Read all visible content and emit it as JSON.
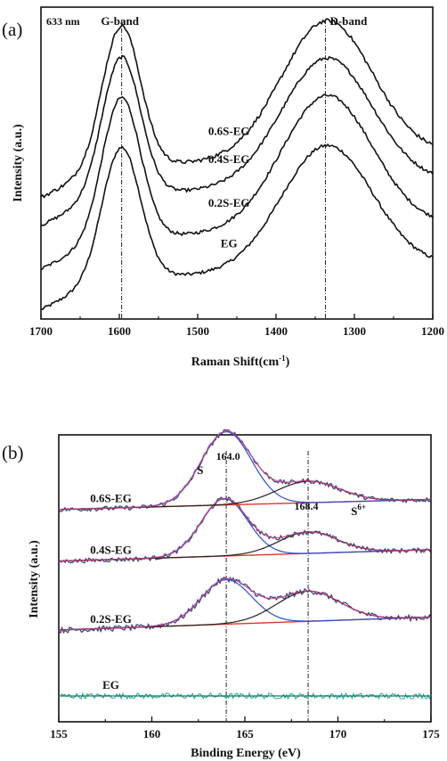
{
  "chart_data": [
    {
      "panel_label": "(a)",
      "type": "line",
      "annotation": "633 nm",
      "xlabel": "Raman Shift(cm-1)",
      "xlabel_main": "Raman Shift(cm",
      "xlabel_sup": "-1",
      "xlabel_close": ")",
      "ylabel": "Intensity (a.u.)",
      "xlim": [
        1700,
        1200
      ],
      "x_ticks": [
        1700,
        1600,
        1500,
        1400,
        1300,
        1200
      ],
      "band_labels": [
        {
          "text": "G-band",
          "x": 1597
        },
        {
          "text": "D-band",
          "x": 1337
        }
      ],
      "reference_lines_x": [
        1597,
        1337
      ],
      "ylim": [
        0,
        10
      ],
      "curve_shape": {
        "g_center": 1597,
        "g_width": 24,
        "d_center": 1335,
        "d_width": 58,
        "tail_slope_scale": 0.5
      },
      "series": [
        {
          "name": "EG",
          "baseline": 1.2,
          "g_height": 4.2,
          "d_height": 4.0,
          "noise": 0.05
        },
        {
          "name": "0.2S-EG",
          "baseline": 2.5,
          "g_height": 4.5,
          "d_height": 4.3,
          "noise": 0.05
        },
        {
          "name": "0.4S-EG",
          "baseline": 3.9,
          "g_height": 4.4,
          "d_height": 4.1,
          "noise": 0.05
        },
        {
          "name": "0.6S-EG",
          "baseline": 4.8,
          "g_height": 4.5,
          "d_height": 4.4,
          "noise": 0.06
        }
      ]
    },
    {
      "panel_label": "(b)",
      "type": "line",
      "xlabel": "Binding Energy (eV)",
      "ylabel": "Intensity (a.u.)",
      "xlim": [
        155,
        175
      ],
      "x_ticks": [
        155,
        160,
        165,
        170,
        175
      ],
      "ylim": [
        0,
        10
      ],
      "peak_labels": [
        {
          "text": "164.0",
          "x": 164.0
        },
        {
          "text": "168.4",
          "x": 168.4
        }
      ],
      "species_labels": [
        {
          "text": "S",
          "sup": ""
        },
        {
          "text": "S",
          "sup": "6+"
        }
      ],
      "reference_lines_x": [
        164.0,
        168.4
      ],
      "colors": {
        "raw": "#1a1a1a",
        "raw_alt": "#3a55c8",
        "fit_total": "#c73a8c",
        "component": "#2a4fd0",
        "baseline": "#d93a2a",
        "eg_raw": "#18a6ad",
        "eg_fit": "#1f7a4a"
      },
      "series": [
        {
          "name": "EG",
          "baseline": 0.9,
          "slope": 0.0,
          "p1_center": 164.0,
          "p1_height": 0.0,
          "p2_center": 168.4,
          "p2_height": 0.0,
          "width": 1.4,
          "noise": 0.1
        },
        {
          "name": "0.2S-EG",
          "baseline": 3.2,
          "slope": 0.45,
          "p1_center": 164.0,
          "p1_height": 1.55,
          "p2_center": 168.4,
          "p2_height": 1.05,
          "width": 1.35,
          "noise": 0.1
        },
        {
          "name": "0.4S-EG",
          "baseline": 5.6,
          "slope": 0.4,
          "p1_center": 163.9,
          "p1_height": 2.0,
          "p2_center": 168.4,
          "p2_height": 0.75,
          "width": 1.25,
          "noise": 0.08
        },
        {
          "name": "0.6S-EG",
          "baseline": 7.4,
          "slope": 0.35,
          "p1_center": 164.0,
          "p1_height": 2.55,
          "p2_center": 168.4,
          "p2_height": 0.75,
          "width": 1.35,
          "noise": 0.08
        }
      ]
    }
  ]
}
